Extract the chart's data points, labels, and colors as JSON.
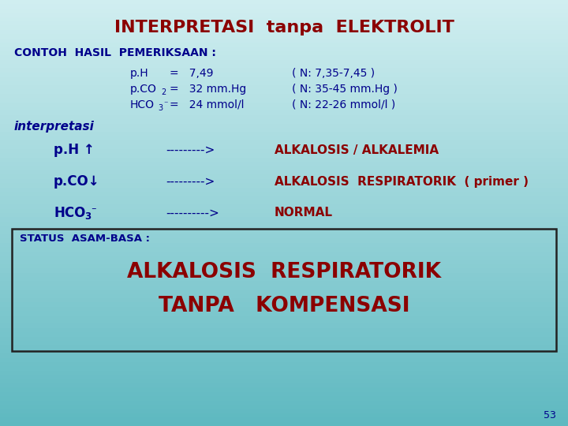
{
  "title": "INTERPRETASI  tanpa  ELEKTROLIT",
  "title_color": "#8B0000",
  "bg_color": "#7ec8c8",
  "text_color_dark": "#00008B",
  "text_color_red": "#8B0000",
  "page_number": "53",
  "contoh_label": "CONTOH  HASIL  PEMERIKSAAN :",
  "interpretasi_label": "interpretasi",
  "ph_result": "ALKALOSIS / ALKALEMIA",
  "pco_result": "ALKALOSIS  RESPIRATORIK  ( primer )",
  "hco3_result": "NORMAL",
  "status_label": "STATUS  ASAM-BASA :",
  "status_result_1": "ALKALOSIS  RESPIRATORIK",
  "status_result_2": "TANPA   KOMPENSASI",
  "arrow_str": "--------->",
  "arrow_str2": "---------->",
  "bg_top": "#d8eff0",
  "bg_bottom": "#6bbfbf"
}
